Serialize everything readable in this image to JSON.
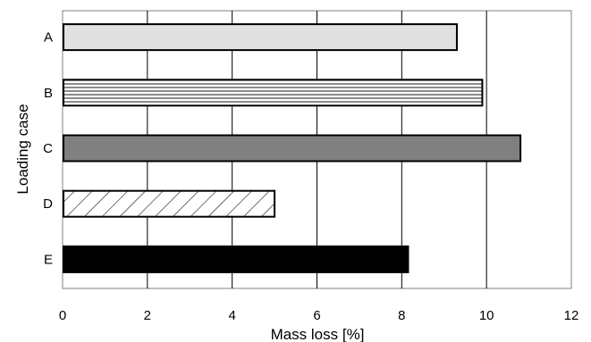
{
  "chart_data": {
    "type": "bar",
    "orientation": "horizontal",
    "categories": [
      "A",
      "B",
      "C",
      "D",
      "E"
    ],
    "values": [
      9.3,
      9.9,
      10.8,
      5.0,
      8.15
    ],
    "xlabel": "Mass loss [%]",
    "ylabel": "Loading case",
    "xlim": [
      0,
      12
    ],
    "xticks": [
      "0",
      "2",
      "4",
      "6",
      "8",
      "10",
      "12"
    ],
    "grid": "vertical",
    "legend": "none",
    "fills": [
      "light-gray",
      "horizontal-stripes",
      "dark-gray",
      "diagonal-hatch",
      "black"
    ],
    "colors": {
      "light_gray": "#e0e0e0",
      "dark_gray": "#808080",
      "black": "#000000",
      "grid": "#000000",
      "frame": "#808080"
    }
  }
}
